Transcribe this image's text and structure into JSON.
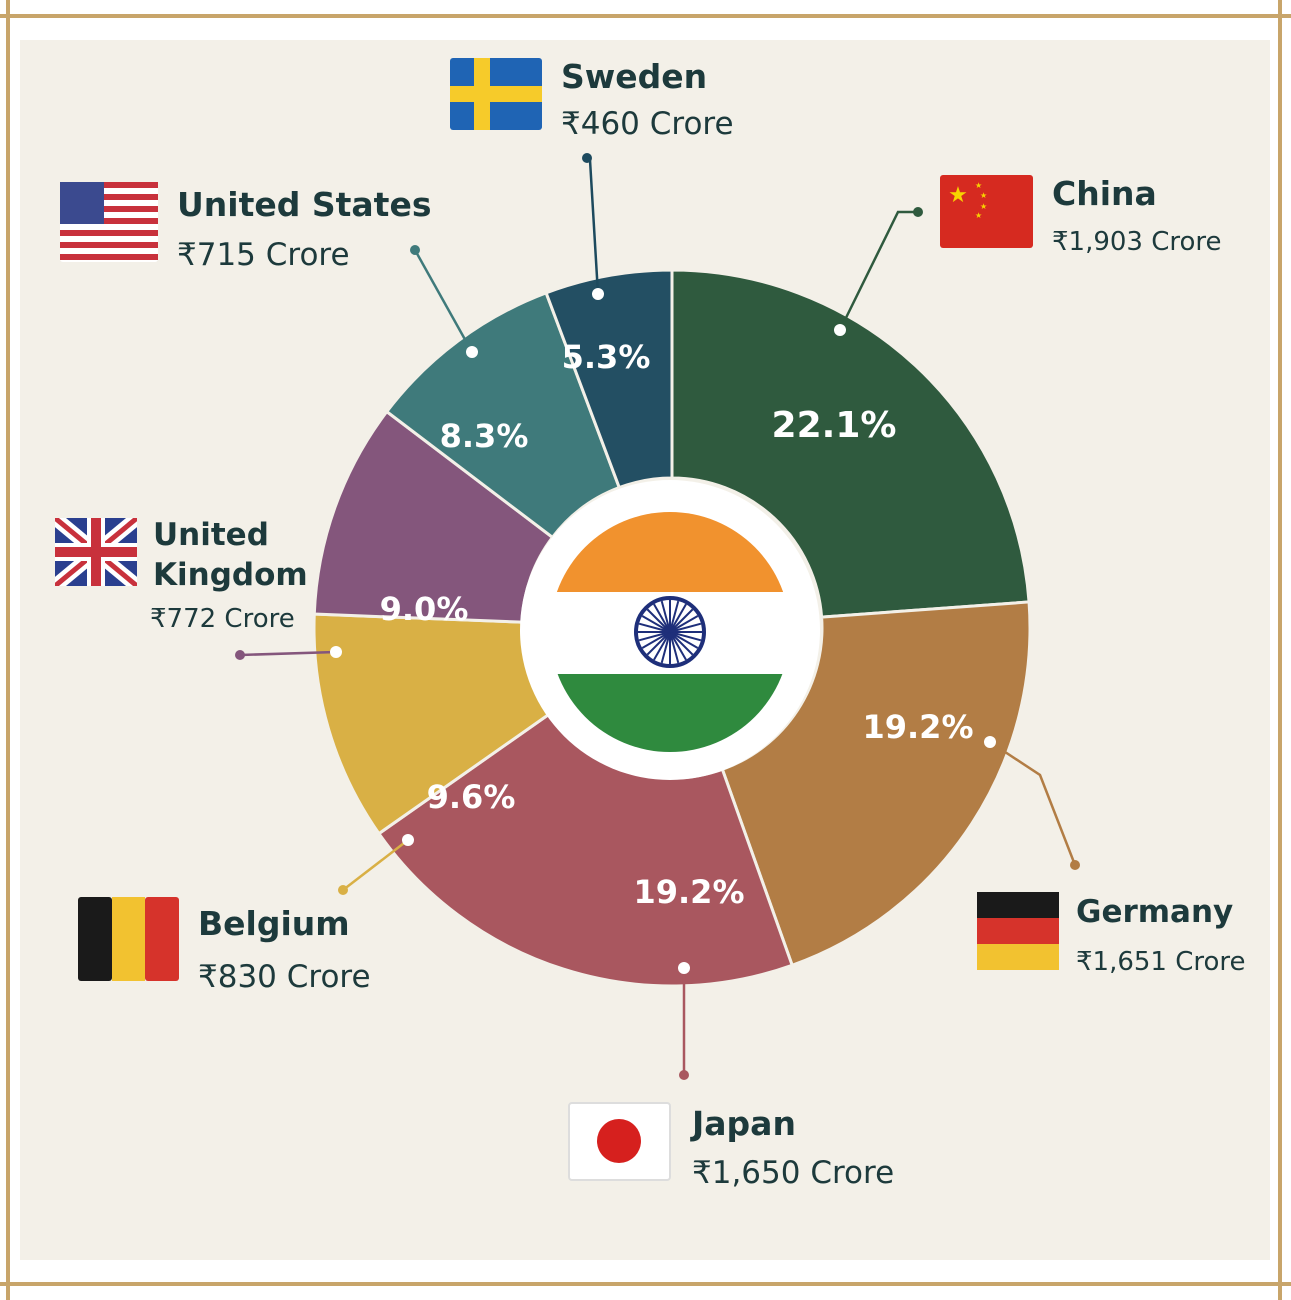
{
  "chart_data": {
    "type": "pie",
    "categories": [
      "China",
      "Germany",
      "Japan",
      "Belgium",
      "United Kingdom",
      "United States",
      "Sweden"
    ],
    "values": [
      22.1,
      19.2,
      19.2,
      9.6,
      9.0,
      8.3,
      5.3
    ],
    "amounts": [
      "₹1,903 Crore",
      "₹1,651 Crore",
      "₹1,650 Crore",
      "₹830 Crore",
      "₹772 Crore",
      "₹715 Crore",
      "₹460 Crore"
    ],
    "data_labels": [
      "22.1%",
      "19.2%",
      "19.2%",
      "9.6%",
      "9.0%",
      "8.3%",
      "5.3%"
    ],
    "colors": [
      "#2f5a3e",
      "#b27d45",
      "#a9575f",
      "#d9b045",
      "#84567c",
      "#3f7a7b",
      "#234f63"
    ],
    "center_emblem": "india-flag",
    "flags": [
      "china-flag",
      "germany-flag",
      "japan-flag",
      "belgium-flag",
      "united-kingdom-flag",
      "united-states-flag",
      "sweden-flag"
    ]
  },
  "labels": {
    "china": {
      "name": "China",
      "value": "₹1,903 Crore"
    },
    "germany": {
      "name": "Germany",
      "value": "₹1,651 Crore"
    },
    "japan": {
      "name": "Japan",
      "value": "₹1,650 Crore"
    },
    "belgium": {
      "name": "Belgium",
      "value": "₹830 Crore"
    },
    "uk": {
      "name_line1": "United",
      "name_line2": "Kingdom",
      "value": "₹772 Crore"
    },
    "usa": {
      "name": "United States",
      "value": "₹715 Crore"
    },
    "sweden": {
      "name": "Sweden",
      "value": "₹460 Crore"
    }
  }
}
